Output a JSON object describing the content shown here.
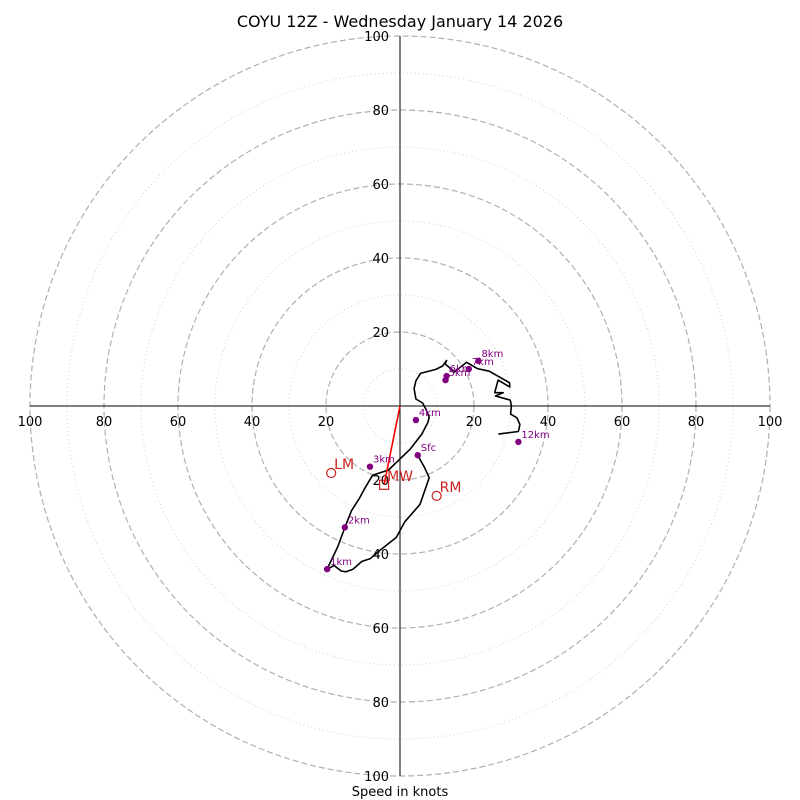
{
  "chart_data": {
    "type": "hodograph",
    "title": "COYU 12Z - Wednesday January 14 2026",
    "xlabel": "Speed in knots",
    "rmax": 100,
    "major_rings": [
      20,
      40,
      60,
      80,
      100
    ],
    "minor_rings": [
      10,
      30,
      50,
      70,
      90
    ],
    "tick_labels": {
      "horizontal": [
        "100",
        "80",
        "60",
        "40",
        "20",
        "20",
        "40",
        "60",
        "80",
        "100"
      ],
      "top": [
        "100",
        "80",
        "60",
        "40",
        "20"
      ],
      "bottom": [
        "20",
        "40",
        "60",
        "80",
        "100"
      ]
    },
    "tick_values": {
      "horizontal": [
        -100,
        -80,
        -60,
        -40,
        -20,
        20,
        40,
        60,
        80,
        100
      ],
      "top": [
        100,
        80,
        60,
        40,
        20
      ],
      "bottom": [
        -20,
        -40,
        -60,
        -80,
        -100
      ]
    },
    "trace_u": [
      4.8,
      6.5,
      7.0,
      7.9,
      5.4,
      1.3,
      -1.0,
      -5.4,
      -8.1,
      -10.3,
      -12.7,
      -14.6,
      -15.9,
      -17.8,
      -19.7,
      -16.8,
      -14.9,
      -13.1,
      -10.9,
      -9.5,
      -7.4,
      -3.1,
      2.8,
      5.9,
      7.5,
      7.9,
      7.0,
      6.1,
      4.3,
      3.8,
      4.3,
      5.1,
      5.5,
      9.7,
      11.5,
      12.6,
      12.2,
      14.7,
      18.0,
      20.9,
      24.1,
      29.6,
      29.7,
      26.5,
      25.6,
      27.9,
      25.8,
      29.8,
      30.1,
      29.9,
      31.6,
      32.4,
      32.0,
      26.6
    ],
    "trace_v": [
      -13.3,
      -16.4,
      -17.4,
      -19.4,
      -26.6,
      -31.3,
      -35.5,
      -39.0,
      -41.3,
      -42.0,
      -44.1,
      -44.8,
      -44.6,
      -43.1,
      -44.1,
      -38.0,
      -32.8,
      -28.3,
      -24.8,
      -22.2,
      -18.7,
      -17.3,
      -11.6,
      -7.6,
      -4.5,
      -3.1,
      -0.9,
      0.8,
      1.9,
      4.7,
      6.8,
      8.1,
      8.8,
      9.9,
      10.8,
      12.3,
      11.4,
      9.2,
      11.8,
      10.1,
      9.4,
      6.3,
      5.1,
      7.0,
      3.6,
      3.6,
      2.7,
      1.6,
      0.0,
      -2.2,
      -3.2,
      -5.0,
      -6.9,
      -7.6
    ],
    "height_labels": [
      {
        "label": "Sfc",
        "u": 4.8,
        "v": -13.3
      },
      {
        "label": "1km",
        "u": -19.7,
        "v": -44.1
      },
      {
        "label": "2km",
        "u": -14.9,
        "v": -32.8
      },
      {
        "label": "3km",
        "u": -8.1,
        "v": -16.4
      },
      {
        "label": "4km",
        "u": 4.3,
        "v": -3.8
      },
      {
        "label": "5km",
        "u": 12.3,
        "v": 7.0
      },
      {
        "label": "6km",
        "u": 12.6,
        "v": 8.1
      },
      {
        "label": "7km",
        "u": 18.6,
        "v": 10.0
      },
      {
        "label": "8km",
        "u": 21.2,
        "v": 12.2
      },
      {
        "label": "12km",
        "u": 32.0,
        "v": -9.7
      }
    ],
    "motion_markers": [
      {
        "label": "LM",
        "u": -18.6,
        "v": -18.1,
        "shape": "circle"
      },
      {
        "label": "MW",
        "u": -4.3,
        "v": -21.3,
        "shape": "square"
      },
      {
        "label": "RM",
        "u": 9.9,
        "v": -24.3,
        "shape": "circle"
      }
    ],
    "shear_line": {
      "u": [
        0,
        -4.3
      ],
      "v": [
        0,
        -21.3
      ]
    },
    "colors": {
      "trace": "#000000",
      "points": "#800080",
      "labels": "#800080",
      "motion": "#cc2222",
      "major_ring": "#b0b0b0",
      "minor_ring": "#cfcfcf"
    }
  }
}
